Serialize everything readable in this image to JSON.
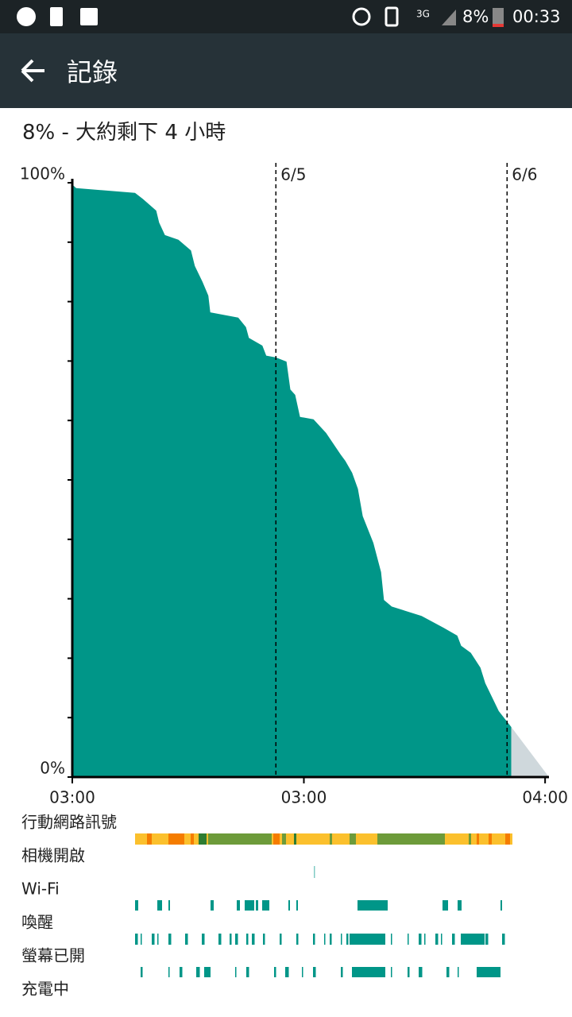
{
  "status_bar": {
    "network": "3G",
    "battery": "8%",
    "time": "00:33"
  },
  "app_bar": {
    "title": "記錄"
  },
  "summary": "8% - 大約剩下 4 小時",
  "chart_data": {
    "type": "area",
    "series": [
      {
        "name": "battery",
        "color": "#009688",
        "x": [
          0,
          0.4,
          6.5,
          7.3,
          8.7,
          9.0,
          9.6,
          11.0,
          12.3,
          12.7,
          13.5,
          14.1,
          14.3,
          17.2,
          18.0,
          18.3,
          19.7,
          20.1,
          21.1,
          22.2,
          22.6,
          23.1,
          23.6,
          25.0,
          26.3,
          27.8,
          28.3,
          29.0,
          29.6,
          30.1,
          31.2,
          32.0,
          32.3,
          33.1,
          36.2,
          38.5,
          39.9,
          40.3,
          41.3,
          42.3,
          42.8,
          44.2,
          45.5
        ],
        "values": [
          99.7,
          99.1,
          98.3,
          97.3,
          95.3,
          93.3,
          91.2,
          90.4,
          88.6,
          86.0,
          83.3,
          81.0,
          78.2,
          77.3,
          75.7,
          73.9,
          72.6,
          70.9,
          70.6,
          69.9,
          65.2,
          64.3,
          60.6,
          60.2,
          57.9,
          54.3,
          53.2,
          51.2,
          48.5,
          43.9,
          39.4,
          34.5,
          29.8,
          28.7,
          27.1,
          25.1,
          23.8,
          22.1,
          20.9,
          18.4,
          15.8,
          11.1,
          8.4
        ]
      },
      {
        "name": "prediction",
        "color": "#cfd8dc",
        "x": [
          45.5,
          49.4
        ],
        "values": [
          8.4,
          0
        ]
      }
    ],
    "xlim": [
      0,
      49.4
    ],
    "xticks": [
      {
        "value": 0,
        "label": "03:00"
      },
      {
        "value": 24,
        "label": "03:00"
      },
      {
        "value": 49,
        "label": "04:00"
      }
    ],
    "ylim": [
      0,
      100
    ],
    "yticks": [
      {
        "value": 0,
        "label": "0%"
      },
      {
        "value": 10,
        "label": null
      },
      {
        "value": 20,
        "label": null
      },
      {
        "value": 30,
        "label": null
      },
      {
        "value": 40,
        "label": null
      },
      {
        "value": 50,
        "label": null
      },
      {
        "value": 60,
        "label": null
      },
      {
        "value": 70,
        "label": null
      },
      {
        "value": 80,
        "label": null
      },
      {
        "value": 90,
        "label": null
      },
      {
        "value": 100,
        "label": "100%"
      }
    ],
    "day_markers": [
      {
        "value": 21.1,
        "label": "6/5"
      },
      {
        "value": 45.06,
        "label": "6/6"
      }
    ]
  },
  "tracks": [
    "行動網路訊號",
    "相機開啟",
    "Wi-Fi",
    "喚醒",
    "螢幕已開",
    "充電中"
  ]
}
